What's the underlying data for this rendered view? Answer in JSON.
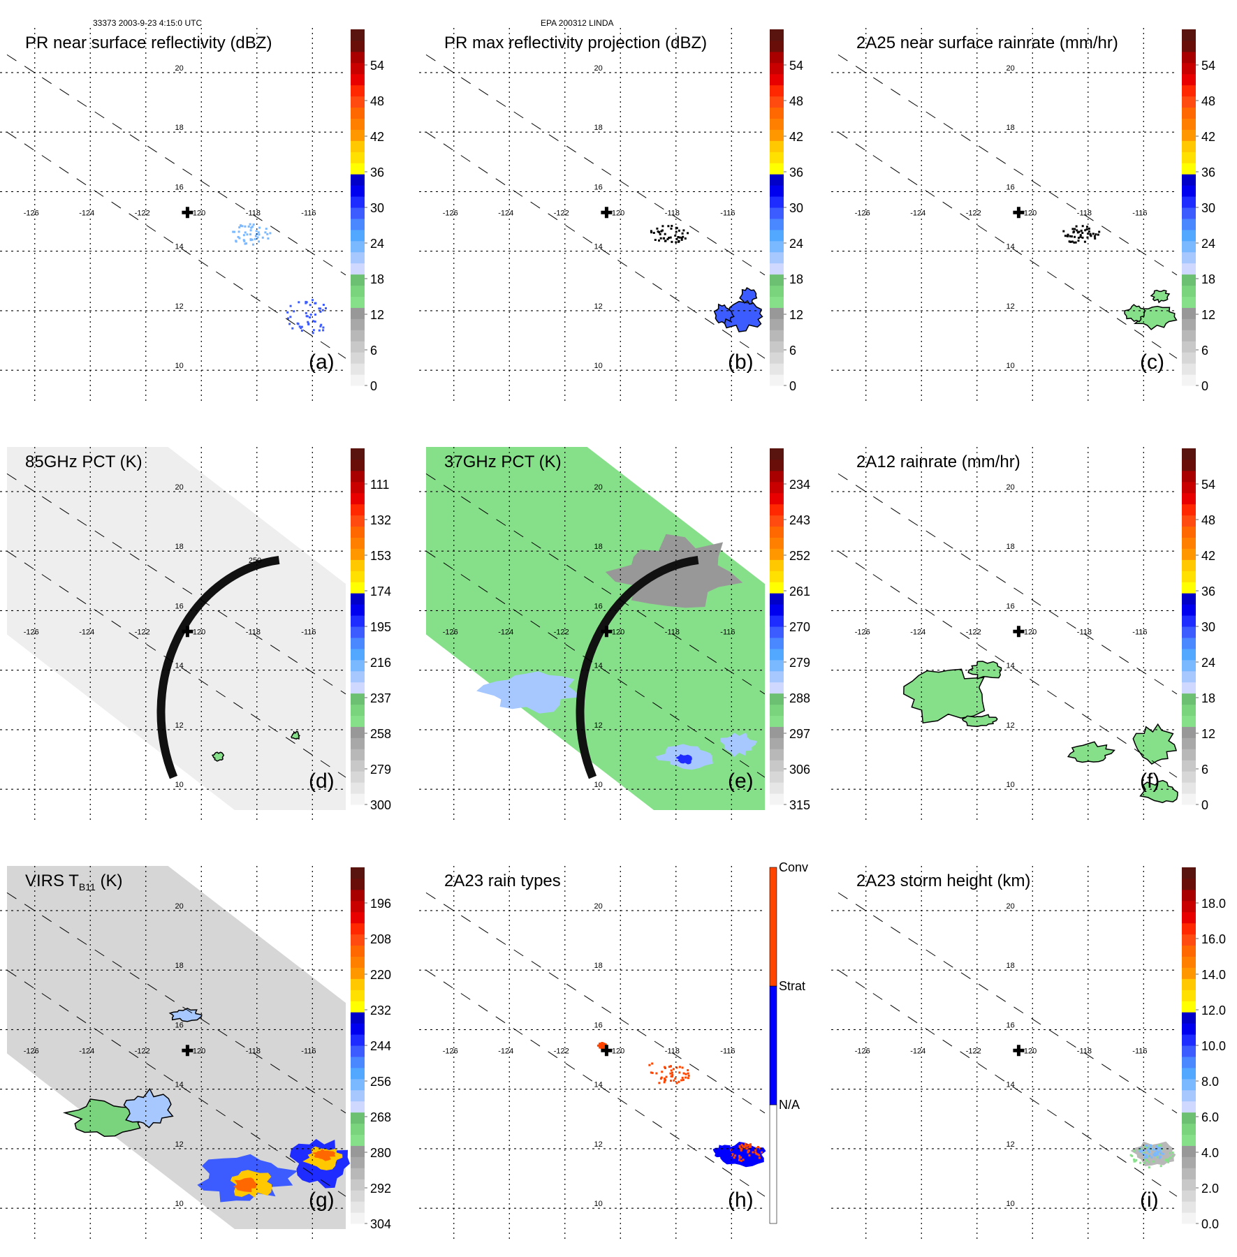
{
  "figure": {
    "header_left": "33373 2003-9-23 4:15:0 UTC",
    "header_center": "EPA 200312 LINDA",
    "center_marker": "cross",
    "map": {
      "lon_ticks": [
        "-126",
        "-124",
        "-122",
        "-120",
        "-118",
        "-116"
      ],
      "lat_ticks": [
        "20",
        "18",
        "16",
        "14",
        "12",
        "10"
      ],
      "lon_range": [
        -127,
        -114.8
      ],
      "lat_range": [
        9.3,
        21.5
      ],
      "center_lon": -120.5,
      "center_lat": 15.3,
      "grid": "dotted"
    },
    "colors": {
      "rainbow_scale": [
        "#f4f4f4",
        "#e6e6e6",
        "#d7d7d7",
        "#c8c8c8",
        "#b8b8b8",
        "#a8a8a8",
        "#989898",
        "#86e08a",
        "#7ad47e",
        "#6cc072",
        "#cfd8ff",
        "#a6c8ff",
        "#7ab8ff",
        "#52a8ff",
        "#4a88ff",
        "#3c5cff",
        "#1e2cff",
        "#0000ee",
        "#0000c8",
        "#ffff00",
        "#ffe000",
        "#ffc800",
        "#ff9800",
        "#ff8000",
        "#ff6800",
        "#ff4a10",
        "#ff2800",
        "#e80000",
        "#c80000",
        "#a80000",
        "#6a0e0a",
        "#5a1410"
      ],
      "conv": "#ff4500",
      "strat": "#0000ff",
      "na": "#ffffff"
    }
  },
  "chart_data": [
    {
      "id": "a",
      "type": "heatmap",
      "title": "PR near surface reflectivity (dBZ)",
      "letter": "(a)",
      "colorbar_ticks": [
        "0",
        "6",
        "12",
        "18",
        "24",
        "30",
        "36",
        "42",
        "48",
        "54"
      ],
      "colorbar_range": [
        0,
        60
      ],
      "features": [
        {
          "kind": "scatter",
          "lon": -116.2,
          "lat": 11.8,
          "w": 1.6,
          "h": 1.3,
          "color": "#3c5cff"
        },
        {
          "kind": "scatter",
          "lon": -118.3,
          "lat": 14.6,
          "w": 1.5,
          "h": 0.7,
          "color": "#7ab8ff"
        }
      ]
    },
    {
      "id": "b",
      "type": "heatmap",
      "title": "PR max reflectivity projection (dBZ)",
      "letter": "(b)",
      "colorbar_ticks": [
        "0",
        "6",
        "12",
        "18",
        "24",
        "30",
        "36",
        "42",
        "48",
        "54"
      ],
      "colorbar_range": [
        0,
        60
      ],
      "features": [
        {
          "kind": "blob",
          "lon": -115.6,
          "lat": 11.8,
          "w": 1.6,
          "h": 0.9,
          "color": "#3c5cff",
          "outline": true
        },
        {
          "kind": "blob",
          "lon": -116.3,
          "lat": 11.9,
          "w": 0.7,
          "h": 0.6,
          "color": "#3c5cff",
          "outline": true
        },
        {
          "kind": "blob",
          "lon": -115.4,
          "lat": 12.5,
          "w": 0.6,
          "h": 0.5,
          "color": "#3c5cff",
          "outline": true
        },
        {
          "kind": "scatter",
          "lon": -118.3,
          "lat": 14.6,
          "w": 1.4,
          "h": 0.6,
          "color": "#000000"
        }
      ]
    },
    {
      "id": "c",
      "type": "heatmap",
      "title": "2A25 near surface rainrate (mm/hr)",
      "letter": "(c)",
      "colorbar_ticks": [
        "0",
        "6",
        "12",
        "18",
        "24",
        "30",
        "36",
        "42",
        "48",
        "54"
      ],
      "colorbar_range": [
        0,
        60
      ],
      "features": [
        {
          "kind": "blob",
          "lon": -115.6,
          "lat": 11.8,
          "w": 1.6,
          "h": 0.8,
          "color": "#86e08a",
          "outline": true
        },
        {
          "kind": "blob",
          "lon": -116.3,
          "lat": 11.9,
          "w": 0.7,
          "h": 0.6,
          "color": "#86e08a",
          "outline": true
        },
        {
          "kind": "blob",
          "lon": -115.4,
          "lat": 12.5,
          "w": 0.6,
          "h": 0.4,
          "color": "#86e08a",
          "outline": true
        },
        {
          "kind": "scatter",
          "lon": -118.3,
          "lat": 14.6,
          "w": 1.4,
          "h": 0.6,
          "color": "#000000"
        }
      ]
    },
    {
      "id": "d",
      "type": "heatmap",
      "title": "85GHz PCT (K)",
      "letter": "(d)",
      "colorbar_ticks": [
        "300",
        "279",
        "258",
        "237",
        "216",
        "195",
        "174",
        "153",
        "132",
        "111"
      ],
      "colorbar_range": [
        300,
        90
      ],
      "swath_fill": "#eeeeee",
      "contour_label": "250",
      "features": [
        {
          "kind": "blob",
          "lon": -119.4,
          "lat": 11.1,
          "w": 0.4,
          "h": 0.3,
          "color": "#86e08a",
          "outline": true
        },
        {
          "kind": "blob",
          "lon": -116.6,
          "lat": 11.8,
          "w": 0.3,
          "h": 0.25,
          "color": "#86e08a",
          "outline": true
        }
      ]
    },
    {
      "id": "e",
      "type": "heatmap",
      "title": "37GHz PCT (K)",
      "letter": "(e)",
      "colorbar_ticks": [
        "315",
        "306",
        "297",
        "288",
        "279",
        "270",
        "261",
        "252",
        "243",
        "234"
      ],
      "colorbar_range": [
        315,
        225
      ],
      "swath_fill": "#86e08a",
      "features": [
        {
          "kind": "blob",
          "lon": -118.0,
          "lat": 17.3,
          "w": 4.5,
          "h": 2.3,
          "color": "#989898",
          "outline": false
        },
        {
          "kind": "blob",
          "lon": -123.2,
          "lat": 13.3,
          "w": 3.5,
          "h": 1.4,
          "color": "#a6c8ff",
          "outline": false
        },
        {
          "kind": "blob",
          "lon": -117.6,
          "lat": 11.1,
          "w": 2.0,
          "h": 0.8,
          "color": "#a6c8ff",
          "outline": false
        },
        {
          "kind": "blob",
          "lon": -117.7,
          "lat": 11.0,
          "w": 0.6,
          "h": 0.35,
          "color": "#1e2cff",
          "outline": false
        },
        {
          "kind": "blob",
          "lon": -115.8,
          "lat": 11.5,
          "w": 1.4,
          "h": 0.8,
          "color": "#a6c8ff",
          "outline": false
        }
      ]
    },
    {
      "id": "f",
      "type": "heatmap",
      "title": "2A12 rainrate (mm/hr)",
      "letter": "(f)",
      "colorbar_ticks": [
        "0",
        "6",
        "12",
        "18",
        "24",
        "30",
        "36",
        "42",
        "48",
        "54"
      ],
      "colorbar_range": [
        0,
        60
      ],
      "features": [
        {
          "kind": "blob",
          "lon": -123.2,
          "lat": 13.2,
          "w": 3.2,
          "h": 1.9,
          "color": "#86e08a",
          "outline": true
        },
        {
          "kind": "blob",
          "lon": -121.7,
          "lat": 14.0,
          "w": 1.3,
          "h": 0.6,
          "color": "#86e08a",
          "outline": true
        },
        {
          "kind": "blob",
          "lon": -121.9,
          "lat": 12.3,
          "w": 1.3,
          "h": 0.4,
          "color": "#86e08a",
          "outline": true
        },
        {
          "kind": "blob",
          "lon": -117.9,
          "lat": 11.2,
          "w": 1.6,
          "h": 0.7,
          "color": "#86e08a",
          "outline": true
        },
        {
          "kind": "blob",
          "lon": -115.6,
          "lat": 11.5,
          "w": 1.5,
          "h": 1.3,
          "color": "#86e08a",
          "outline": true
        },
        {
          "kind": "blob",
          "lon": -115.4,
          "lat": 9.9,
          "w": 1.3,
          "h": 0.8,
          "color": "#86e08a",
          "outline": true
        }
      ]
    },
    {
      "id": "g",
      "type": "heatmap",
      "title": "VIRS T",
      "title_sub": "B11",
      "title_suffix": " (K)",
      "letter": "(g)",
      "colorbar_ticks": [
        "304",
        "292",
        "280",
        "268",
        "256",
        "244",
        "232",
        "220",
        "208",
        "196"
      ],
      "colorbar_range": [
        304,
        184
      ],
      "swath_fill": "#d6d6d6",
      "features": [
        {
          "kind": "blob",
          "lon": -123.3,
          "lat": 13.0,
          "w": 3.0,
          "h": 1.3,
          "color": "#7ad47e",
          "outline": true
        },
        {
          "kind": "blob",
          "lon": -122.0,
          "lat": 13.3,
          "w": 1.8,
          "h": 1.3,
          "color": "#a6c8ff",
          "outline": true
        },
        {
          "kind": "blob",
          "lon": -118.5,
          "lat": 11.0,
          "w": 3.6,
          "h": 1.6,
          "color": "#3c5cff",
          "outline": false
        },
        {
          "kind": "blob",
          "lon": -118.2,
          "lat": 10.8,
          "w": 1.6,
          "h": 0.9,
          "color": "#ffc800",
          "outline": false
        },
        {
          "kind": "blob",
          "lon": -118.4,
          "lat": 10.8,
          "w": 0.9,
          "h": 0.5,
          "color": "#ff6800",
          "outline": false
        },
        {
          "kind": "blob",
          "lon": -115.7,
          "lat": 11.5,
          "w": 2.2,
          "h": 1.6,
          "color": "#1e2cff",
          "outline": false
        },
        {
          "kind": "blob",
          "lon": -115.6,
          "lat": 11.7,
          "w": 1.4,
          "h": 0.8,
          "color": "#ffc800",
          "outline": false
        },
        {
          "kind": "blob",
          "lon": -115.6,
          "lat": 11.8,
          "w": 0.8,
          "h": 0.4,
          "color": "#ff6800",
          "outline": false
        },
        {
          "kind": "blob",
          "lon": -120.6,
          "lat": 16.5,
          "w": 1.2,
          "h": 0.4,
          "color": "#a6c8ff",
          "outline": true
        }
      ]
    },
    {
      "id": "h",
      "type": "heatmap",
      "title": "2A23 rain types",
      "letter": "(h)",
      "categorical": true,
      "colorbar_categories": [
        "N/A",
        "Strat",
        "Conv"
      ],
      "features": [
        {
          "kind": "blob",
          "lon": -115.6,
          "lat": 11.8,
          "w": 1.6,
          "h": 0.8,
          "color": "#0000ff",
          "outline": false
        },
        {
          "kind": "blob",
          "lon": -116.3,
          "lat": 11.9,
          "w": 0.7,
          "h": 0.5,
          "color": "#0000ff",
          "outline": false
        },
        {
          "kind": "scatter",
          "lon": -115.5,
          "lat": 11.9,
          "w": 1.2,
          "h": 0.6,
          "color": "#ff4500"
        },
        {
          "kind": "scatter",
          "lon": -118.3,
          "lat": 14.6,
          "w": 1.8,
          "h": 0.8,
          "color": "#ff4500"
        },
        {
          "kind": "scatter",
          "lon": -120.7,
          "lat": 15.5,
          "w": 0.3,
          "h": 0.2,
          "color": "#ff4500"
        }
      ]
    },
    {
      "id": "i",
      "type": "heatmap",
      "title": "2A23 storm height (km)",
      "letter": "(i)",
      "colorbar_ticks": [
        "0.0",
        "2.0",
        "4.0",
        "6.0",
        "8.0",
        "10.0",
        "12.0",
        "14.0",
        "16.0",
        "18.0"
      ],
      "colorbar_range": [
        0,
        20
      ],
      "features": [
        {
          "kind": "blob",
          "lon": -115.6,
          "lat": 11.8,
          "w": 1.8,
          "h": 0.9,
          "color": "#b8b8b8",
          "outline": false
        },
        {
          "kind": "scatter",
          "lon": -115.7,
          "lat": 11.8,
          "w": 1.6,
          "h": 0.8,
          "color": "#86e08a"
        },
        {
          "kind": "scatter",
          "lon": -115.8,
          "lat": 11.9,
          "w": 1.0,
          "h": 0.5,
          "color": "#7ab8ff"
        }
      ]
    }
  ]
}
